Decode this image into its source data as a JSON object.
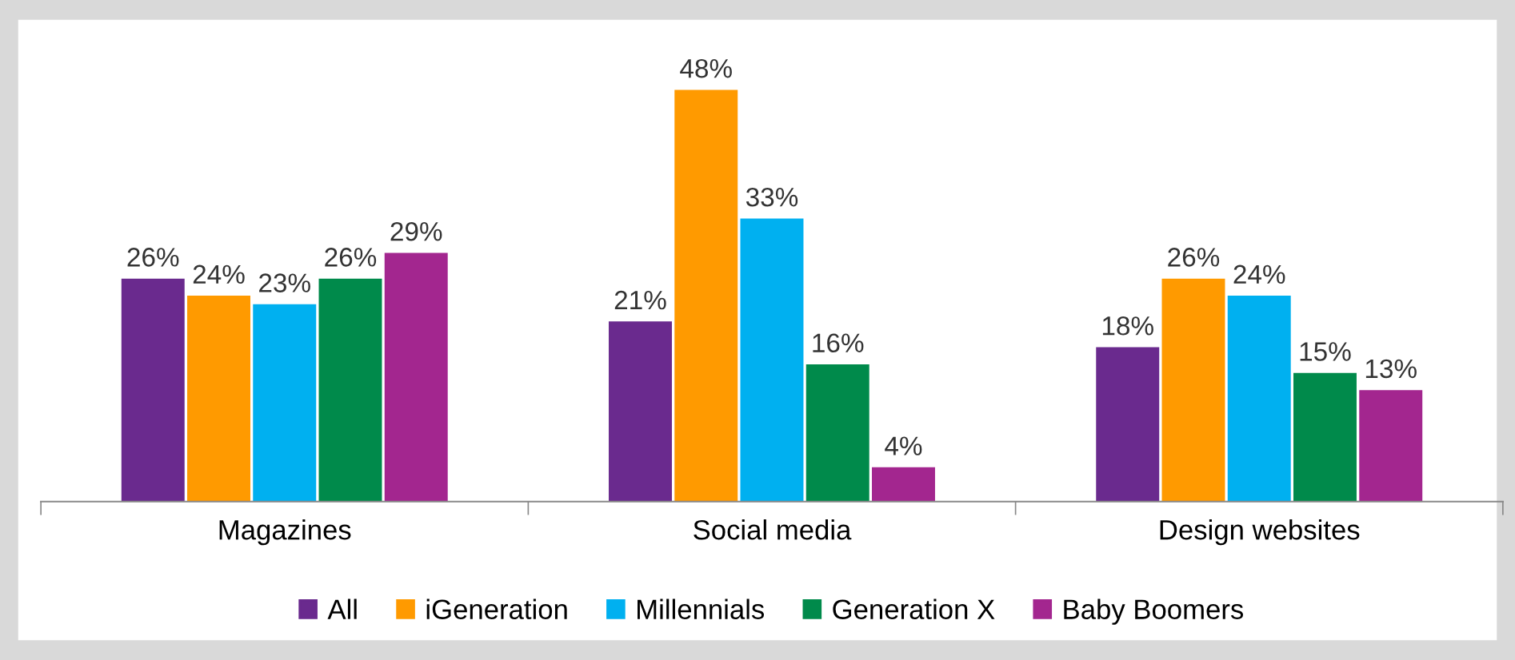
{
  "chart_data": {
    "type": "bar",
    "categories": [
      "Magazines",
      "Social media",
      "Design websites"
    ],
    "series": [
      {
        "name": "All",
        "color": "#6a2a8e",
        "values": [
          26,
          21,
          18
        ],
        "value_labels": [
          "26%",
          "21%",
          "18%"
        ]
      },
      {
        "name": "iGeneration",
        "color": "#ff9a00",
        "values": [
          24,
          48,
          26
        ],
        "value_labels": [
          "24%",
          "48%",
          "26%"
        ]
      },
      {
        "name": "Millennials",
        "color": "#00b0f0",
        "values": [
          23,
          33,
          24
        ],
        "value_labels": [
          "23%",
          "33%",
          "24%"
        ]
      },
      {
        "name": "Generation X",
        "color": "#008a4b",
        "values": [
          26,
          16,
          15
        ],
        "value_labels": [
          "26%",
          "16%",
          "15%"
        ]
      },
      {
        "name": "Baby Boomers",
        "color": "#a3268f",
        "values": [
          29,
          4,
          13
        ],
        "value_labels": [
          "29%",
          "4%",
          "13%"
        ]
      }
    ],
    "legend": "bottom",
    "grid": false
  }
}
